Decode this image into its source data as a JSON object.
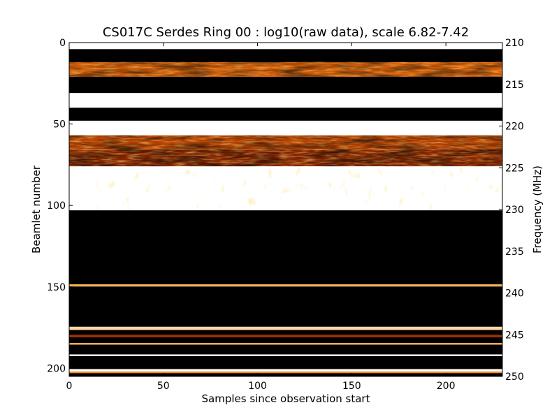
{
  "chart_data": {
    "type": "heatmap",
    "title": "CS017C Serdes Ring 00 : log10(raw data), scale 6.82-7.42",
    "xlabel": "Samples since observation start",
    "ylabel": "Beamlet number",
    "ylabel_right": "Frequency (MHz)",
    "xlim": [
      0,
      230
    ],
    "ylim": [
      205,
      0
    ],
    "ylim_right": [
      250,
      210
    ],
    "x_ticks": [
      0,
      50,
      100,
      150,
      200
    ],
    "y_ticks": [
      0,
      50,
      100,
      150,
      200
    ],
    "y_ticks_right": [
      210,
      215,
      220,
      225,
      230,
      235,
      240,
      245,
      250
    ],
    "colormap": "afmhot",
    "colors": {
      "low": "#000000",
      "mid_dark": "#5a0a00",
      "mid": "#c84a00",
      "mid_bright": "#ff9a20",
      "high": "#ffffff"
    },
    "bands": [
      {
        "from": 0,
        "to": 4,
        "level": 1.0
      },
      {
        "from": 4,
        "to": 12,
        "level": 0.0
      },
      {
        "from": 12,
        "to": 21,
        "level": 0.55,
        "texture": "noisy"
      },
      {
        "from": 21,
        "to": 31,
        "level": 0.0
      },
      {
        "from": 31,
        "to": 40,
        "level": 1.0
      },
      {
        "from": 40,
        "to": 48,
        "level": 0.0
      },
      {
        "from": 48,
        "to": 57,
        "level": 1.0
      },
      {
        "from": 57,
        "to": 66,
        "level": 0.45,
        "texture": "noisy"
      },
      {
        "from": 66,
        "to": 76,
        "level": 0.35,
        "texture": "noisy"
      },
      {
        "from": 76,
        "to": 103,
        "level": 1.0,
        "texture": "speckled"
      },
      {
        "from": 103,
        "to": 148.5,
        "level": 0.0
      },
      {
        "from": 148.5,
        "to": 149.8,
        "level": 0.8
      },
      {
        "from": 149.8,
        "to": 174.5,
        "level": 0.0
      },
      {
        "from": 174.5,
        "to": 176.5,
        "level": 0.9
      },
      {
        "from": 176.5,
        "to": 179.5,
        "level": 0.0
      },
      {
        "from": 179.5,
        "to": 181,
        "level": 0.4
      },
      {
        "from": 181,
        "to": 184.5,
        "level": 0.0
      },
      {
        "from": 184.5,
        "to": 185.5,
        "level": 0.8
      },
      {
        "from": 185.5,
        "to": 191.5,
        "level": 0.0
      },
      {
        "from": 191.5,
        "to": 192.5,
        "level": 1.0
      },
      {
        "from": 192.5,
        "to": 200.5,
        "level": 0.0
      },
      {
        "from": 200.5,
        "to": 202,
        "level": 1.0
      },
      {
        "from": 202,
        "to": 203,
        "level": 0.7
      },
      {
        "from": 203,
        "to": 205,
        "level": 0.0
      }
    ]
  }
}
